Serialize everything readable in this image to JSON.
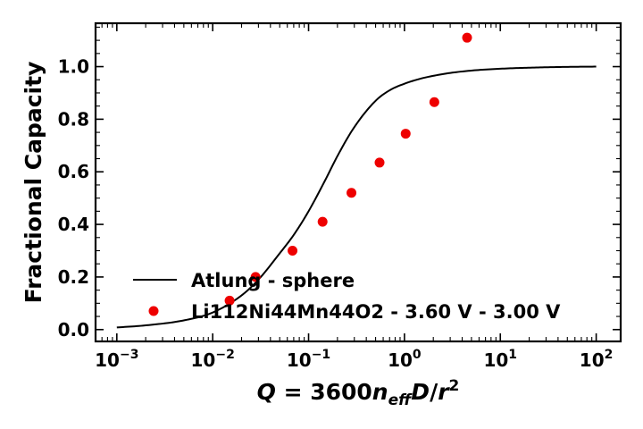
{
  "chart_data": {
    "type": "scatter",
    "xscale": "log",
    "xlim": [
      0.0006,
      180
    ],
    "ylim": [
      -0.045,
      1.165
    ],
    "xticks": [
      {
        "value": 0.001,
        "base": "10",
        "exp": "−3"
      },
      {
        "value": 0.01,
        "base": "10",
        "exp": "−2"
      },
      {
        "value": 0.1,
        "base": "10",
        "exp": "−1"
      },
      {
        "value": 1,
        "base": "10",
        "exp": "0"
      },
      {
        "value": 10,
        "base": "10",
        "exp": "1"
      },
      {
        "value": 100,
        "base": "10",
        "exp": "2"
      }
    ],
    "yticks": [
      {
        "value": 0.0,
        "label": "0.0"
      },
      {
        "value": 0.2,
        "label": "0.2"
      },
      {
        "value": 0.4,
        "label": "0.4"
      },
      {
        "value": 0.6,
        "label": "0.6"
      },
      {
        "value": 0.8,
        "label": "0.8"
      },
      {
        "value": 1.0,
        "label": "1.0"
      }
    ],
    "xlabel": {
      "q": "Q",
      "eq": " = 3600",
      "n": "n",
      "sub": "eff",
      "d": "D",
      "slash": "/",
      "r": "r",
      "sup": "2"
    },
    "ylabel": "Fractional Capacity",
    "legend_position": "lower-right",
    "series": [
      {
        "name": "Atlung - sphere",
        "kind": "line",
        "color": "#000000",
        "x": [
          0.001,
          0.002,
          0.005,
          0.01,
          0.02,
          0.03,
          0.05,
          0.07,
          0.1,
          0.15,
          0.2,
          0.3,
          0.5,
          0.7,
          1,
          1.5,
          2,
          3,
          5,
          7,
          10,
          20,
          50,
          100
        ],
        "y": [
          0.008,
          0.016,
          0.035,
          0.065,
          0.13,
          0.19,
          0.29,
          0.36,
          0.45,
          0.57,
          0.66,
          0.77,
          0.87,
          0.91,
          0.935,
          0.955,
          0.965,
          0.976,
          0.985,
          0.989,
          0.992,
          0.996,
          0.999,
          1.0
        ]
      },
      {
        "name": "Li112Ni44Mn44O2 - 3.60 V - 3.00 V",
        "kind": "scatter",
        "color": "#ee0000",
        "x": [
          0.015,
          0.028,
          0.068,
          0.14,
          0.28,
          0.55,
          1.03,
          2.05,
          4.5
        ],
        "y": [
          0.11,
          0.2,
          0.3,
          0.41,
          0.52,
          0.635,
          0.745,
          0.865,
          1.11
        ]
      }
    ]
  }
}
